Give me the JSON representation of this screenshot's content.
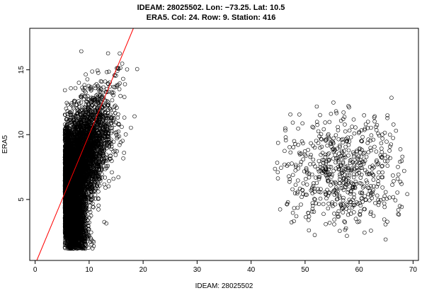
{
  "chart_data": {
    "type": "scatter",
    "title_lines": [
      "IDEAM: 28025502. Lon: −73.25. Lat: 10.5",
      "ERA5.  Col: 24. Row: 9. Station: 416"
    ],
    "xlabel": "IDEAM: 28025502",
    "ylabel": "ERA5",
    "xlim": [
      -1,
      71
    ],
    "ylim": [
      0.3,
      18.2
    ],
    "x_ticks": [
      0,
      10,
      20,
      30,
      40,
      50,
      60,
      70
    ],
    "y_ticks": [
      5,
      10,
      15
    ],
    "grid": false,
    "legend": "none",
    "point_style": "open-circle",
    "point_color": "#000000",
    "line_color": "#ff0000",
    "reference_line": {
      "type": "identity",
      "slope": 1,
      "intercept": 0
    },
    "clusters": [
      {
        "description_values": "dense cluster",
        "x_range": [
          1.5,
          19
        ],
        "y_range": [
          1.2,
          17.5
        ],
        "x_center": 5.5,
        "x_spread": 3.0,
        "y_center": 6.2,
        "y_spread": 2.8,
        "correlation": 0.7,
        "count": 9000
      },
      {
        "description_values": "sparse cluster",
        "x_range": [
          44,
          69
        ],
        "y_range": [
          1.8,
          13
        ],
        "x_center": 57,
        "x_spread": 5.5,
        "y_center": 7.0,
        "y_spread": 2.2,
        "correlation": 0.05,
        "count": 620
      }
    ]
  }
}
